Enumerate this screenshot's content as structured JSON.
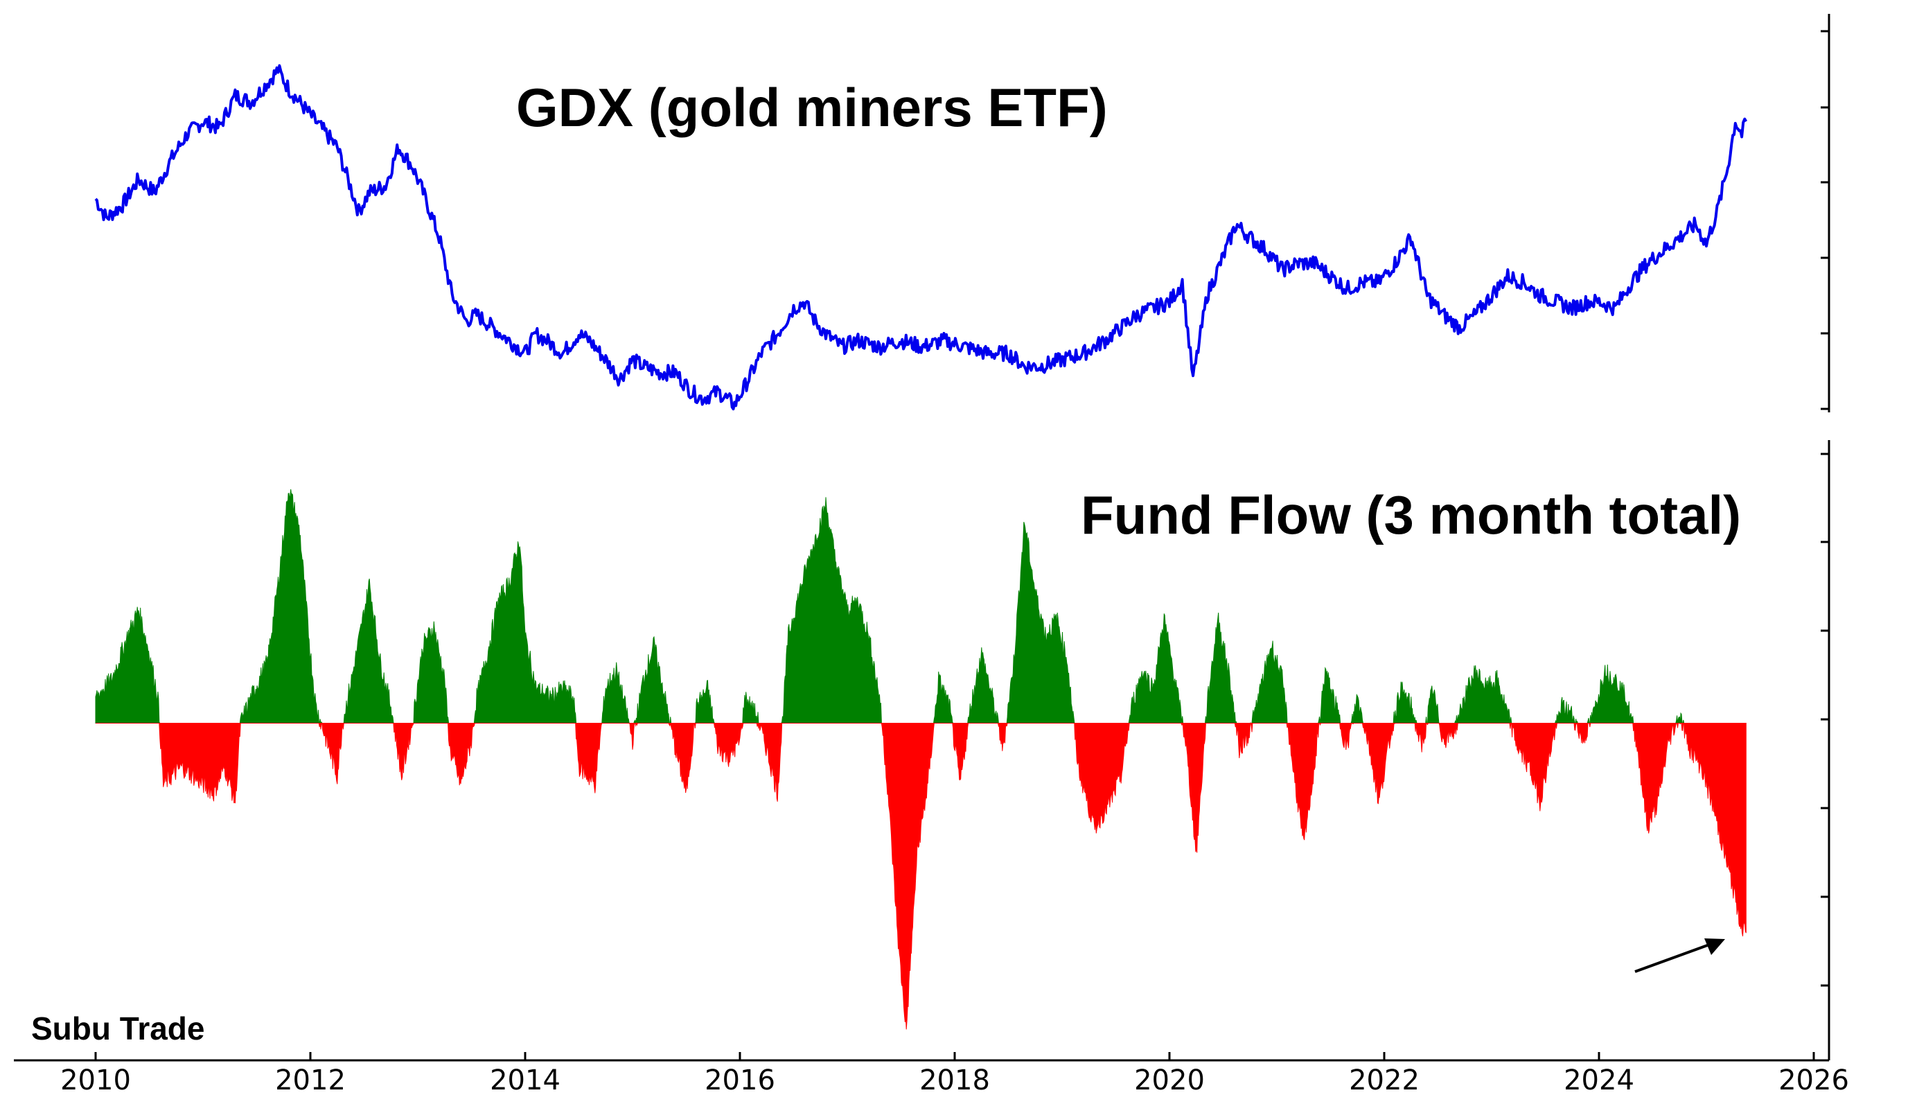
{
  "watermark": "Subu Trade",
  "chart_data": [
    {
      "type": "line",
      "title": "GDX (gold miners ETF)",
      "color": "#0000ee",
      "x_range": [
        2010,
        2025.37
      ],
      "ylim": [
        15,
        72
      ],
      "points": [
        [
          2010.0,
          46
        ],
        [
          2010.1,
          43
        ],
        [
          2010.25,
          45
        ],
        [
          2010.4,
          49
        ],
        [
          2010.55,
          47
        ],
        [
          2010.7,
          52
        ],
        [
          2010.85,
          56
        ],
        [
          2011.0,
          58
        ],
        [
          2011.15,
          57
        ],
        [
          2011.3,
          62
        ],
        [
          2011.45,
          61
        ],
        [
          2011.6,
          64
        ],
        [
          2011.7,
          66
        ],
        [
          2011.8,
          63
        ],
        [
          2011.95,
          60
        ],
        [
          2012.1,
          57
        ],
        [
          2012.25,
          54
        ],
        [
          2012.35,
          49
        ],
        [
          2012.45,
          44
        ],
        [
          2012.55,
          47
        ],
        [
          2012.7,
          48
        ],
        [
          2012.82,
          54
        ],
        [
          2012.95,
          51
        ],
        [
          2013.05,
          47
        ],
        [
          2013.2,
          40
        ],
        [
          2013.32,
          31
        ],
        [
          2013.45,
          27
        ],
        [
          2013.55,
          28
        ],
        [
          2013.7,
          26
        ],
        [
          2013.85,
          24
        ],
        [
          2014.0,
          22
        ],
        [
          2014.1,
          25
        ],
        [
          2014.2,
          24
        ],
        [
          2014.35,
          22
        ],
        [
          2014.5,
          25
        ],
        [
          2014.6,
          24
        ],
        [
          2014.75,
          21
        ],
        [
          2014.88,
          18
        ],
        [
          2015.0,
          21
        ],
        [
          2015.1,
          20
        ],
        [
          2015.25,
          19
        ],
        [
          2015.4,
          19
        ],
        [
          2015.55,
          16
        ],
        [
          2015.65,
          15
        ],
        [
          2015.8,
          16
        ],
        [
          2015.95,
          14
        ],
        [
          2016.05,
          17
        ],
        [
          2016.2,
          22
        ],
        [
          2016.35,
          25
        ],
        [
          2016.5,
          29
        ],
        [
          2016.6,
          30
        ],
        [
          2016.7,
          27
        ],
        [
          2016.8,
          25
        ],
        [
          2016.95,
          23
        ],
        [
          2017.1,
          24
        ],
        [
          2017.3,
          23
        ],
        [
          2017.5,
          24
        ],
        [
          2017.7,
          23
        ],
        [
          2017.9,
          24
        ],
        [
          2018.1,
          23
        ],
        [
          2018.3,
          22
        ],
        [
          2018.5,
          22
        ],
        [
          2018.65,
          20
        ],
        [
          2018.8,
          20
        ],
        [
          2019.0,
          21
        ],
        [
          2019.2,
          22
        ],
        [
          2019.4,
          24
        ],
        [
          2019.55,
          26
        ],
        [
          2019.7,
          28
        ],
        [
          2019.85,
          29
        ],
        [
          2020.0,
          30
        ],
        [
          2020.12,
          33
        ],
        [
          2020.22,
          18
        ],
        [
          2020.35,
          31
        ],
        [
          2020.5,
          37
        ],
        [
          2020.62,
          42
        ],
        [
          2020.75,
          40
        ],
        [
          2020.9,
          38
        ],
        [
          2021.05,
          35
        ],
        [
          2021.2,
          36
        ],
        [
          2021.35,
          36
        ],
        [
          2021.5,
          34
        ],
        [
          2021.65,
          32
        ],
        [
          2021.8,
          33
        ],
        [
          2021.95,
          33
        ],
        [
          2022.1,
          36
        ],
        [
          2022.25,
          40
        ],
        [
          2022.4,
          31
        ],
        [
          2022.55,
          28
        ],
        [
          2022.7,
          26
        ],
        [
          2022.85,
          28
        ],
        [
          2023.0,
          31
        ],
        [
          2023.15,
          34
        ],
        [
          2023.3,
          33
        ],
        [
          2023.45,
          31
        ],
        [
          2023.6,
          30
        ],
        [
          2023.75,
          29
        ],
        [
          2023.9,
          30
        ],
        [
          2024.0,
          30
        ],
        [
          2024.15,
          29
        ],
        [
          2024.3,
          33
        ],
        [
          2024.45,
          36
        ],
        [
          2024.6,
          38
        ],
        [
          2024.75,
          40
        ],
        [
          2024.9,
          42
        ],
        [
          2025.0,
          39
        ],
        [
          2025.1,
          44
        ],
        [
          2025.2,
          51
        ],
        [
          2025.27,
          58
        ],
        [
          2025.33,
          56
        ],
        [
          2025.37,
          58
        ]
      ]
    },
    {
      "type": "area",
      "title": "Fund Flow (3 month total)",
      "positive_color": "#008000",
      "negative_color": "#ff0000",
      "x_range": [
        2010,
        2025.37
      ],
      "ylim": [
        -3.5,
        3.0
      ],
      "xticks": [
        2010,
        2012,
        2014,
        2016,
        2018,
        2020,
        2022,
        2024,
        2026
      ],
      "points": [
        [
          2010.0,
          0.3
        ],
        [
          2010.15,
          0.5
        ],
        [
          2010.3,
          1.0
        ],
        [
          2010.4,
          1.3
        ],
        [
          2010.5,
          0.8
        ],
        [
          2010.58,
          0.3
        ],
        [
          2010.63,
          -0.7
        ],
        [
          2010.8,
          -0.5
        ],
        [
          2011.0,
          -0.7
        ],
        [
          2011.1,
          -0.8
        ],
        [
          2011.2,
          -0.5
        ],
        [
          2011.3,
          -0.9
        ],
        [
          2011.35,
          0.0
        ],
        [
          2011.45,
          0.3
        ],
        [
          2011.6,
          0.7
        ],
        [
          2011.7,
          1.6
        ],
        [
          2011.8,
          2.7
        ],
        [
          2011.9,
          2.2
        ],
        [
          2012.0,
          0.8
        ],
        [
          2012.05,
          0.2
        ],
        [
          2012.15,
          -0.2
        ],
        [
          2012.25,
          -0.6
        ],
        [
          2012.3,
          0.0
        ],
        [
          2012.4,
          0.6
        ],
        [
          2012.55,
          1.6
        ],
        [
          2012.65,
          0.7
        ],
        [
          2012.75,
          0.2
        ],
        [
          2012.85,
          -0.6
        ],
        [
          2012.95,
          0.0
        ],
        [
          2013.05,
          0.9
        ],
        [
          2013.15,
          1.1
        ],
        [
          2013.25,
          0.5
        ],
        [
          2013.3,
          -0.3
        ],
        [
          2013.4,
          -0.7
        ],
        [
          2013.5,
          -0.2
        ],
        [
          2013.55,
          0.3
        ],
        [
          2013.65,
          0.8
        ],
        [
          2013.75,
          1.4
        ],
        [
          2013.85,
          1.6
        ],
        [
          2013.95,
          2.1
        ],
        [
          2014.0,
          1.0
        ],
        [
          2014.1,
          0.4
        ],
        [
          2014.25,
          0.3
        ],
        [
          2014.35,
          0.4
        ],
        [
          2014.45,
          0.3
        ],
        [
          2014.5,
          -0.5
        ],
        [
          2014.65,
          -0.7
        ],
        [
          2014.75,
          0.4
        ],
        [
          2014.85,
          0.6
        ],
        [
          2014.95,
          0.1
        ],
        [
          2015.0,
          -0.2
        ],
        [
          2015.1,
          0.5
        ],
        [
          2015.2,
          0.9
        ],
        [
          2015.3,
          0.3
        ],
        [
          2015.4,
          -0.3
        ],
        [
          2015.5,
          -0.8
        ],
        [
          2015.6,
          0.2
        ],
        [
          2015.7,
          0.4
        ],
        [
          2015.8,
          -0.3
        ],
        [
          2015.9,
          -0.4
        ],
        [
          2016.0,
          -0.2
        ],
        [
          2016.05,
          0.3
        ],
        [
          2016.15,
          0.1
        ],
        [
          2016.25,
          -0.3
        ],
        [
          2016.35,
          -0.8
        ],
        [
          2016.45,
          1.0
        ],
        [
          2016.6,
          1.7
        ],
        [
          2016.7,
          2.1
        ],
        [
          2016.8,
          2.5
        ],
        [
          2016.9,
          1.8
        ],
        [
          2017.0,
          1.3
        ],
        [
          2017.1,
          1.4
        ],
        [
          2017.2,
          1.0
        ],
        [
          2017.3,
          0.3
        ],
        [
          2017.38,
          -0.8
        ],
        [
          2017.48,
          -2.6
        ],
        [
          2017.55,
          -3.5
        ],
        [
          2017.65,
          -1.5
        ],
        [
          2017.75,
          -0.7
        ],
        [
          2017.85,
          0.5
        ],
        [
          2017.95,
          0.2
        ],
        [
          2018.05,
          -0.7
        ],
        [
          2018.15,
          0.2
        ],
        [
          2018.25,
          0.8
        ],
        [
          2018.35,
          0.3
        ],
        [
          2018.45,
          -0.3
        ],
        [
          2018.55,
          0.7
        ],
        [
          2018.65,
          2.3
        ],
        [
          2018.75,
          1.5
        ],
        [
          2018.85,
          1.0
        ],
        [
          2018.95,
          1.2
        ],
        [
          2019.05,
          0.7
        ],
        [
          2019.15,
          -0.5
        ],
        [
          2019.3,
          -1.2
        ],
        [
          2019.45,
          -0.9
        ],
        [
          2019.55,
          -0.6
        ],
        [
          2019.65,
          0.2
        ],
        [
          2019.75,
          0.6
        ],
        [
          2019.85,
          0.4
        ],
        [
          2019.95,
          1.2
        ],
        [
          2020.05,
          0.5
        ],
        [
          2020.15,
          -0.2
        ],
        [
          2020.25,
          -1.5
        ],
        [
          2020.35,
          0.2
        ],
        [
          2020.45,
          1.2
        ],
        [
          2020.55,
          0.6
        ],
        [
          2020.65,
          -0.3
        ],
        [
          2020.75,
          -0.1
        ],
        [
          2020.85,
          0.4
        ],
        [
          2020.95,
          0.9
        ],
        [
          2021.05,
          0.5
        ],
        [
          2021.15,
          -0.5
        ],
        [
          2021.25,
          -1.4
        ],
        [
          2021.35,
          -0.5
        ],
        [
          2021.45,
          0.6
        ],
        [
          2021.55,
          0.2
        ],
        [
          2021.65,
          -0.3
        ],
        [
          2021.75,
          0.3
        ],
        [
          2021.85,
          -0.2
        ],
        [
          2021.95,
          -0.9
        ],
        [
          2022.05,
          -0.2
        ],
        [
          2022.15,
          0.4
        ],
        [
          2022.25,
          0.2
        ],
        [
          2022.35,
          -0.3
        ],
        [
          2022.45,
          0.4
        ],
        [
          2022.55,
          -0.2
        ],
        [
          2022.65,
          -0.1
        ],
        [
          2022.75,
          0.3
        ],
        [
          2022.85,
          0.6
        ],
        [
          2022.95,
          0.4
        ],
        [
          2023.05,
          0.5
        ],
        [
          2023.15,
          0.1
        ],
        [
          2023.25,
          -0.3
        ],
        [
          2023.35,
          -0.5
        ],
        [
          2023.45,
          -0.9
        ],
        [
          2023.55,
          -0.3
        ],
        [
          2023.65,
          0.2
        ],
        [
          2023.75,
          0.1
        ],
        [
          2023.85,
          -0.2
        ],
        [
          2023.95,
          0.1
        ],
        [
          2024.05,
          0.6
        ],
        [
          2024.15,
          0.5
        ],
        [
          2024.25,
          0.3
        ],
        [
          2024.35,
          -0.2
        ],
        [
          2024.45,
          -1.2
        ],
        [
          2024.55,
          -0.9
        ],
        [
          2024.65,
          -0.2
        ],
        [
          2024.75,
          0.1
        ],
        [
          2024.85,
          -0.3
        ],
        [
          2024.95,
          -0.5
        ],
        [
          2025.05,
          -0.9
        ],
        [
          2025.15,
          -1.4
        ],
        [
          2025.25,
          -1.9
        ],
        [
          2025.32,
          -2.3
        ],
        [
          2025.37,
          -2.4
        ]
      ]
    }
  ]
}
